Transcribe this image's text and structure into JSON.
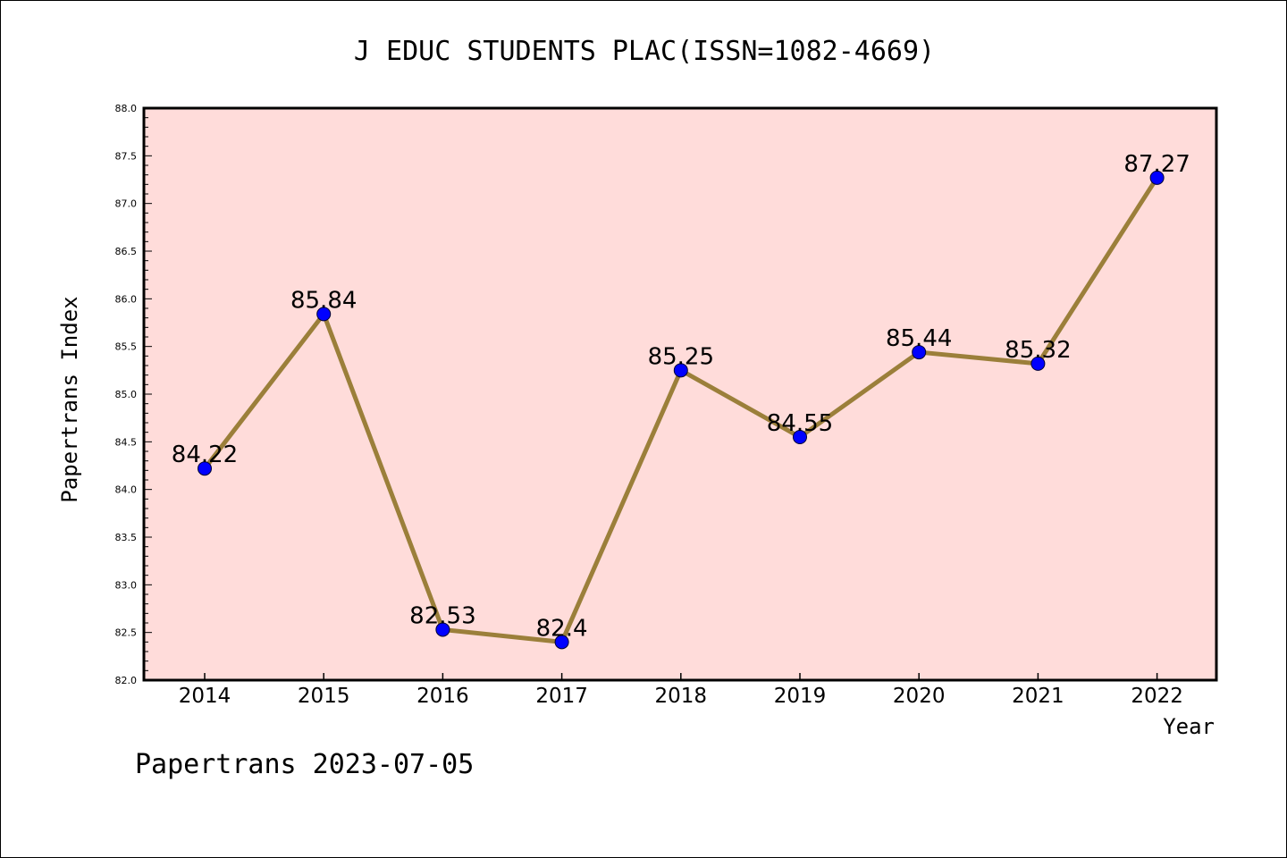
{
  "chart_data": {
    "type": "line",
    "title": "J EDUC STUDENTS PLAC(ISSN=1082-4669)",
    "xlabel": "Year",
    "ylabel": "Papertrans Index",
    "categories": [
      "2014",
      "2015",
      "2016",
      "2017",
      "2018",
      "2019",
      "2020",
      "2021",
      "2022"
    ],
    "values": [
      84.22,
      85.84,
      82.53,
      82.4,
      85.25,
      84.55,
      85.44,
      85.32,
      87.27
    ],
    "value_labels": [
      "84.22",
      "85.84",
      "82.53",
      "82.4",
      "85.25",
      "84.55",
      "85.44",
      "85.32",
      "87.27"
    ],
    "ylim": [
      82.0,
      88.0
    ],
    "yticks": [
      "82.0",
      "82.5",
      "83.0",
      "83.5",
      "84.0",
      "84.5",
      "85.0",
      "85.5",
      "86.0",
      "86.5",
      "87.0",
      "87.5",
      "88.0"
    ],
    "grid": false,
    "colors": {
      "plot_background": "#ffdcda",
      "line": "#9b7f3a",
      "marker": "#0000ff"
    }
  },
  "footer": "Papertrans 2023-07-05"
}
